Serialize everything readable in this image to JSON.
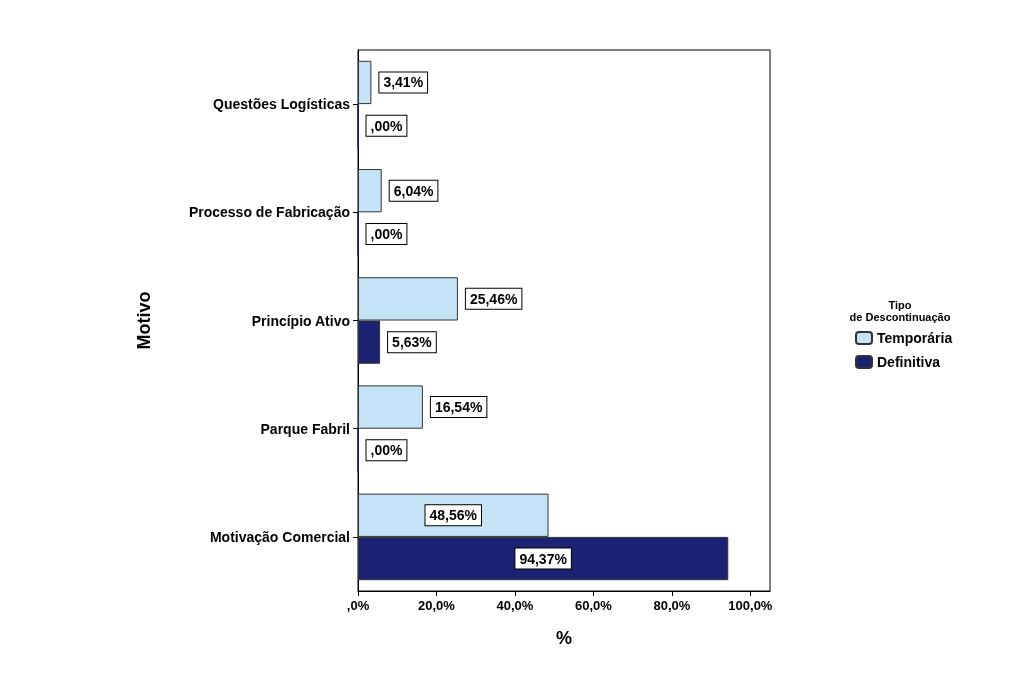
{
  "chart_data": {
    "type": "bar",
    "orientation": "horizontal",
    "xlabel": "%",
    "ylabel": "Motivo",
    "legend_title": "Tipo de Descontinuação",
    "legend": "right",
    "categories": [
      "Questões Logísticas",
      "Processo de Fabricação",
      "Princípio Ativo",
      "Parque Fabril",
      "Motivação Comercial"
    ],
    "series": [
      {
        "name": "Temporária",
        "color": "#c5e3f6",
        "values": [
          3.41,
          6.04,
          25.46,
          16.54,
          48.56
        ],
        "value_labels": [
          "3,41%",
          "6,04%",
          "25,46%",
          "16,54%",
          "48,56%"
        ]
      },
      {
        "name": "Definitiva",
        "color": "#1c2272",
        "values": [
          0,
          0,
          5.63,
          0,
          94.37
        ],
        "value_labels": [
          ",00%",
          ",00%",
          "5,63%",
          ",00%",
          "94,37%"
        ]
      }
    ],
    "xlim": [
      0,
      105
    ],
    "xticks": [
      {
        "value": 0,
        "label": ",0%"
      },
      {
        "value": 20,
        "label": "20,0%"
      },
      {
        "value": 40,
        "label": "40,0%"
      },
      {
        "value": 60,
        "label": "60,0%"
      },
      {
        "value": 80,
        "label": "80,0%"
      },
      {
        "value": 100,
        "label": "100,0%"
      }
    ],
    "grid": false
  }
}
